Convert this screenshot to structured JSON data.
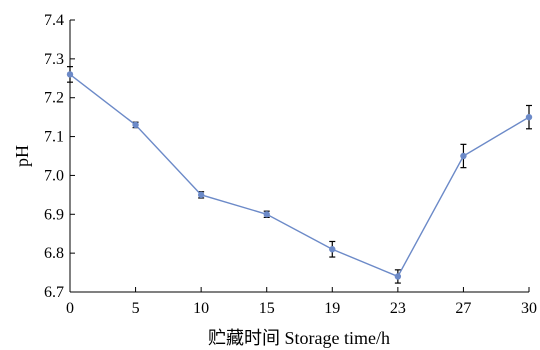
{
  "chart_data": {
    "type": "line",
    "xlabel": "贮藏时间 Storage time/h",
    "ylabel": "pH",
    "categories": [
      "0",
      "5",
      "10",
      "15",
      "19",
      "23",
      "27",
      "30"
    ],
    "ylim": [
      6.7,
      7.4
    ],
    "yticks": [
      "6.7",
      "6.8",
      "6.9",
      "7.0",
      "7.1",
      "7.2",
      "7.3",
      "7.4"
    ],
    "grid": false,
    "line_color": "#6c8ac8",
    "series": [
      {
        "values": [
          7.26,
          7.13,
          6.95,
          6.9,
          6.81,
          6.74,
          7.05,
          7.15
        ],
        "errors": [
          0.02,
          0.007,
          0.008,
          0.008,
          0.02,
          0.017,
          0.03,
          0.03
        ]
      }
    ]
  }
}
